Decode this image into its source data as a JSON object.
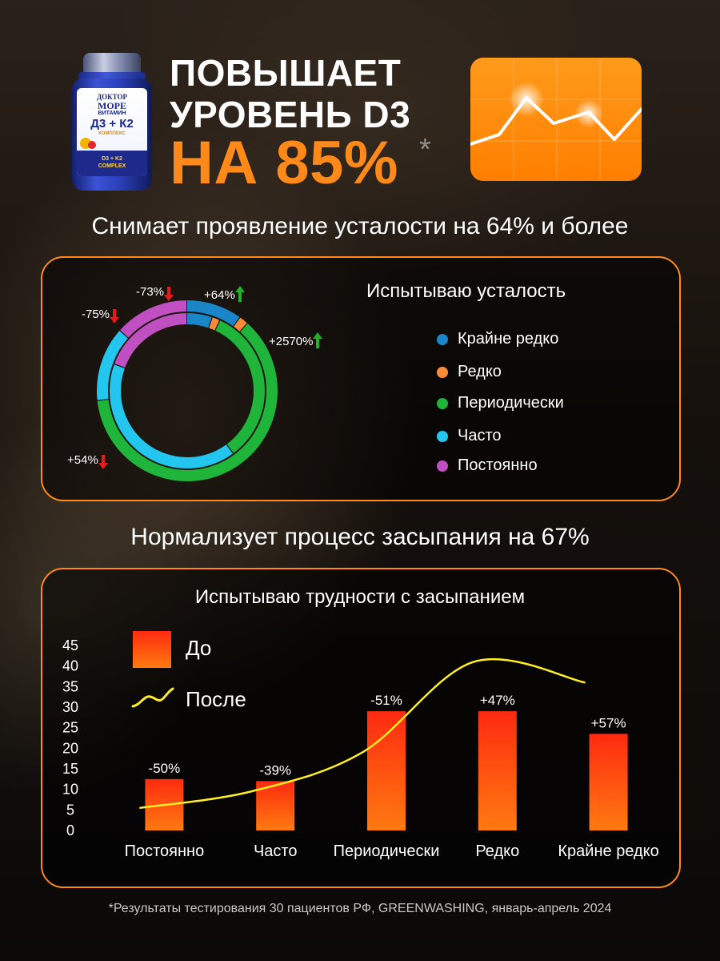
{
  "headline": {
    "line1": "ПОВЫШАЕТ",
    "line2": "УРОВЕНЬ D3",
    "line3": "НА 85%",
    "asterisk": "*"
  },
  "product": {
    "brand_line1": "ДОКТОР",
    "brand_line2": "МОРЕ",
    "vitamin": "ВИТАМИН",
    "name": "Д3 + К2",
    "kind": "КОМПЛЕКС",
    "sub_line1": "D3 + K2",
    "sub_line2": "COMPLEX"
  },
  "fatigue": {
    "title": "Снимает проявление усталости на 64% и более",
    "heading": "Испытываю усталость",
    "legend": [
      {
        "label": "Крайне редко",
        "color": "#1a86c8"
      },
      {
        "label": "Редко",
        "color": "#ff8a3a"
      },
      {
        "label": "Периодически",
        "color": "#1fb53a"
      },
      {
        "label": "Часто",
        "color": "#22c6ee"
      },
      {
        "label": "Постоянно",
        "color": "#c04fc2"
      }
    ],
    "changes": [
      {
        "text": "-73%",
        "direction": "down"
      },
      {
        "text": "+64%",
        "direction": "up"
      },
      {
        "text": "-75%",
        "direction": "down"
      },
      {
        "text": "+2570%",
        "direction": "up"
      },
      {
        "text": "+54%",
        "direction": "down"
      }
    ]
  },
  "sleep": {
    "title": "Нормализует процесс засыпания на 67%",
    "heading": "Испытываю трудности с засыпанием",
    "legend_before": "До",
    "legend_after": "После"
  },
  "chart_data": [
    {
      "type": "pie",
      "variant": "concentric-donut",
      "title": "Испытываю усталость",
      "categories": [
        "Крайне редко",
        "Редко",
        "Периодически",
        "Часто",
        "Постоянно"
      ],
      "colors": [
        "#1a86c8",
        "#ff8a3a",
        "#1fb53a",
        "#22c6ee",
        "#c04fc2"
      ],
      "series": [
        {
          "ring": "outer",
          "values": [
            3,
            0.5,
            18.5,
            4,
            4
          ]
        },
        {
          "ring": "inner",
          "values": [
            1.6,
            0.5,
            9.9,
            12.2,
            5.8
          ]
        }
      ],
      "annotations": [
        "-73%",
        "+64%",
        "-75%",
        "+2570%",
        "+54%"
      ],
      "legend": "right"
    },
    {
      "type": "bar",
      "title": "Испытываю трудности с засыпанием",
      "categories": [
        "Постоянно",
        "Часто",
        "Периодически",
        "Редко",
        "Крайне редко"
      ],
      "series": [
        {
          "name": "До",
          "type": "bar",
          "values": [
            12.5,
            12,
            29,
            29,
            23.5
          ],
          "color": "#ff4a10"
        },
        {
          "name": "После",
          "type": "line",
          "values": [
            5.5,
            9.5,
            19,
            41,
            36
          ],
          "color": "#ffee22"
        }
      ],
      "data_labels": [
        "-50%",
        "-39%",
        "-51%",
        "+47%",
        "+57%"
      ],
      "ylim": [
        0,
        45
      ],
      "yticks": [
        0,
        5,
        10,
        15,
        20,
        25,
        30,
        35,
        40,
        45
      ],
      "grid": false,
      "legend": "top-left"
    }
  ],
  "footnote": "*Результаты тестирования 30 пациентов РФ, GREENWASHING, январь-апрель 2024"
}
